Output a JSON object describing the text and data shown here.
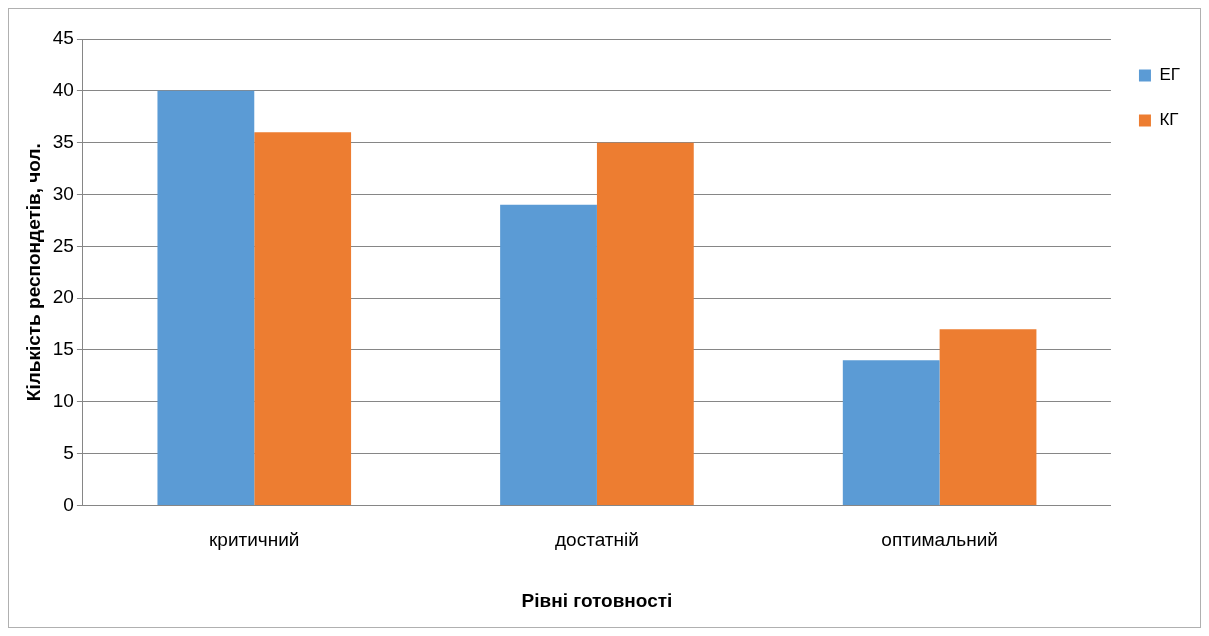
{
  "chart_data": {
    "type": "bar",
    "xlabel": "Рівні готовності",
    "ylabel": "Кількість респондетів, чол.",
    "categories": [
      "критичний",
      "достатній",
      "оптимальний"
    ],
    "series": [
      {
        "name": "ЕГ",
        "color": "#5b9bd5",
        "values": [
          40,
          29,
          14
        ]
      },
      {
        "name": "КГ",
        "color": "#ed7d31",
        "values": [
          36,
          35,
          17
        ]
      }
    ],
    "ylim": [
      0,
      45
    ],
    "yticks": [
      0,
      5,
      10,
      15,
      20,
      25,
      30,
      35,
      40,
      45
    ],
    "grid": "y",
    "legend": "top right"
  }
}
